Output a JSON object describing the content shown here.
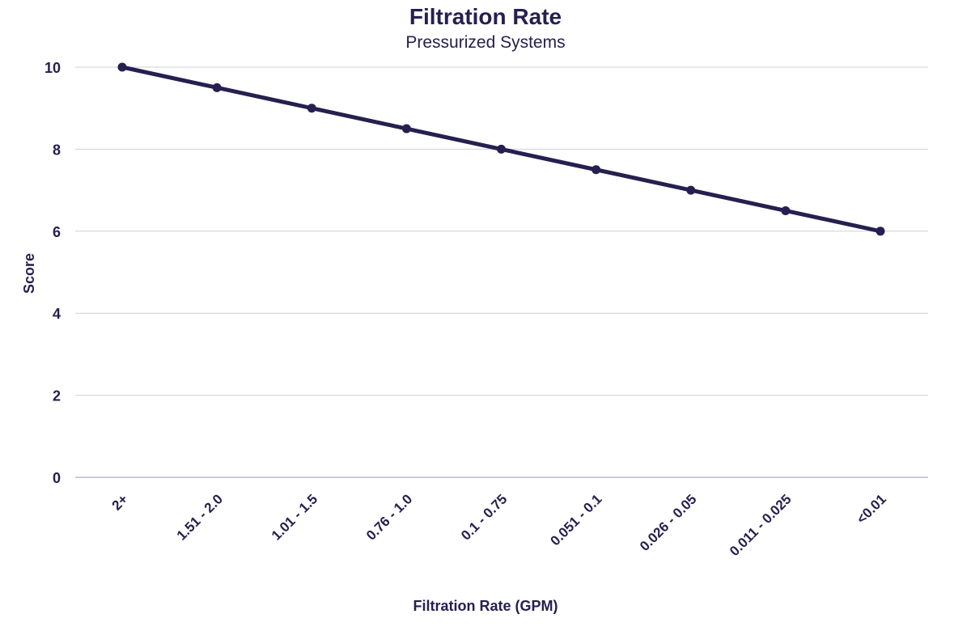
{
  "chart_data": {
    "type": "line",
    "title": "Filtration Rate",
    "subtitle": "Pressurized Systems",
    "xlabel": "Filtration Rate (GPM)",
    "ylabel": "Score",
    "categories": [
      "2+",
      "1.51 - 2.0",
      "1.01 - 1.5",
      "0.76 - 1.0",
      "0.1 - 0.75",
      "0.051 - 0.1",
      "0.026 - 0.05",
      "0.011 - 0.025",
      "<0.01"
    ],
    "series": [
      {
        "values": [
          10,
          9.5,
          9,
          8.5,
          8,
          7.5,
          7,
          6.5,
          6
        ]
      }
    ],
    "ylim": [
      0,
      10
    ],
    "yticks": [
      "0",
      "2",
      "4",
      "6",
      "8",
      "10"
    ],
    "grid": true,
    "legend": "none",
    "colors": {
      "line": "#25204f",
      "grid": "#d0d0dc",
      "text": "#25204f"
    }
  }
}
